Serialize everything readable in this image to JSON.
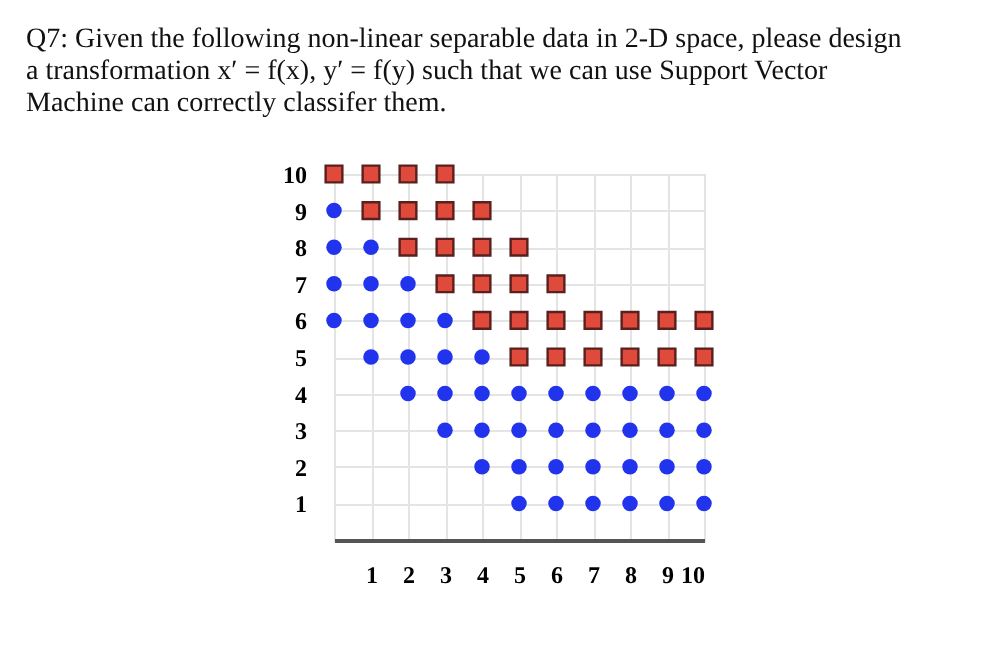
{
  "chart_data": {
    "type": "scatter",
    "title": "Q7: Given the following non-linear separable data in 2-D space, please design a transformation x′ = f(x), y′ = f(y) such that we can use Support Vector Machine can correctly classifer them.",
    "series": [
      {
        "color": "#2233ee",
        "marker": "circle",
        "x": [
          0,
          0,
          1,
          0,
          1,
          2,
          0,
          1,
          2,
          3,
          1,
          2,
          3,
          4,
          2,
          3,
          4,
          5,
          6,
          7,
          8,
          9,
          10,
          3,
          4,
          5,
          6,
          7,
          8,
          9,
          10,
          4,
          5,
          6,
          7,
          8,
          9,
          10,
          5,
          6,
          7,
          8,
          9,
          10
        ],
        "values": [
          9,
          8,
          8,
          7,
          7,
          7,
          6,
          6,
          6,
          6,
          5,
          5,
          5,
          5,
          4,
          4,
          4,
          4,
          4,
          4,
          4,
          4,
          4,
          3,
          3,
          3,
          3,
          3,
          3,
          3,
          3,
          2,
          2,
          2,
          2,
          2,
          2,
          2,
          1,
          1,
          1,
          1,
          1,
          1
        ]
      },
      {
        "color": "#e04a3a",
        "marker": "square",
        "x": [
          0,
          1,
          2,
          3,
          1,
          2,
          3,
          4,
          2,
          3,
          4,
          5,
          3,
          4,
          5,
          6,
          4,
          5,
          6,
          7,
          8,
          9,
          10,
          5,
          6,
          7,
          8,
          9,
          10
        ],
        "values": [
          10,
          10,
          10,
          10,
          9,
          9,
          9,
          9,
          8,
          8,
          8,
          8,
          7,
          7,
          7,
          7,
          6,
          6,
          6,
          6,
          6,
          6,
          6,
          5,
          5,
          5,
          5,
          5,
          5
        ]
      }
    ],
    "xlim": [
      0,
      10
    ],
    "ylim": [
      0,
      10
    ],
    "xticks": [
      {
        "value": 0,
        "label": null
      },
      1,
      2,
      3,
      4,
      5,
      6,
      7,
      8,
      9,
      10
    ],
    "yticks": [
      {
        "value": 0,
        "label": null
      },
      1,
      2,
      3,
      4,
      5,
      6,
      7,
      8,
      9,
      10
    ],
    "grid": true
  }
}
